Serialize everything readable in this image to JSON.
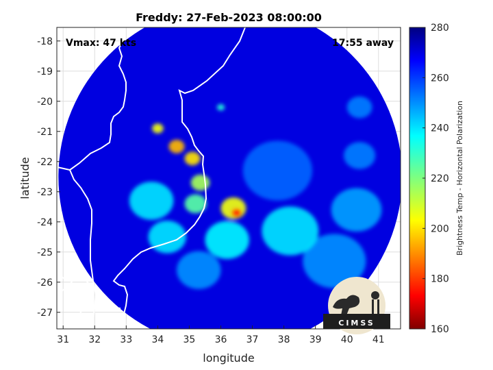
{
  "figure": {
    "title": "Freddy: 27-Feb-2023 08:00:00",
    "vmax_label": "Vmax: 47 kts",
    "time_away_label": "17:55 away",
    "logo_text": "CIMSS"
  },
  "map": {
    "xlabel": "longitude",
    "ylabel": "latitude",
    "xlim": [
      30.8,
      41.7
    ],
    "ylim": [
      -27.55,
      -17.55
    ],
    "xticks": [
      "31",
      "32",
      "33",
      "34",
      "35",
      "36",
      "37",
      "38",
      "39",
      "40",
      "41"
    ],
    "xtick_values": [
      31,
      32,
      33,
      34,
      35,
      36,
      37,
      38,
      39,
      40,
      41
    ],
    "yticks": [
      "-18",
      "-19",
      "-20",
      "-21",
      "-22",
      "-23",
      "-24",
      "-25",
      "-26",
      "-27"
    ],
    "ytick_values": [
      -18,
      -19,
      -20,
      -21,
      -22,
      -23,
      -24,
      -25,
      -26,
      -27
    ],
    "swath_center": [
      36.3,
      -22.5
    ],
    "swath_radius_deg": 5.45,
    "background_tb": 270,
    "tb_features": [
      {
        "lon": 36.5,
        "lat": -23.7,
        "tb": 178,
        "spread": 0.16
      },
      {
        "lon": 36.4,
        "lat": -23.55,
        "tb": 205,
        "spread": 0.4
      },
      {
        "lon": 34.6,
        "lat": -21.5,
        "tb": 195,
        "spread": 0.25
      },
      {
        "lon": 35.1,
        "lat": -21.9,
        "tb": 200,
        "spread": 0.25
      },
      {
        "lon": 34.0,
        "lat": -20.9,
        "tb": 205,
        "spread": 0.18
      },
      {
        "lon": 35.35,
        "lat": -22.7,
        "tb": 215,
        "spread": 0.3
      },
      {
        "lon": 35.2,
        "lat": -23.4,
        "tb": 225,
        "spread": 0.35
      },
      {
        "lon": 33.8,
        "lat": -23.3,
        "tb": 240,
        "spread": 0.7
      },
      {
        "lon": 34.3,
        "lat": -24.5,
        "tb": 240,
        "spread": 0.6
      },
      {
        "lon": 36.2,
        "lat": -24.6,
        "tb": 238,
        "spread": 0.7
      },
      {
        "lon": 38.2,
        "lat": -24.3,
        "tb": 240,
        "spread": 0.9
      },
      {
        "lon": 40.3,
        "lat": -23.6,
        "tb": 248,
        "spread": 0.8
      },
      {
        "lon": 39.6,
        "lat": -25.3,
        "tb": 250,
        "spread": 1.0
      },
      {
        "lon": 35.3,
        "lat": -25.6,
        "tb": 250,
        "spread": 0.7
      },
      {
        "lon": 40.4,
        "lat": -21.8,
        "tb": 252,
        "spread": 0.5
      },
      {
        "lon": 40.4,
        "lat": -20.2,
        "tb": 252,
        "spread": 0.4
      },
      {
        "lon": 36.0,
        "lat": -20.2,
        "tb": 232,
        "spread": 0.12
      },
      {
        "lon": 37.8,
        "lat": -22.3,
        "tb": 255,
        "spread": 1.1
      }
    ]
  },
  "colorbar": {
    "label": "Brightness Temp - Horizontal Polarization",
    "min": 160,
    "max": 280,
    "ticks": [
      "160",
      "180",
      "200",
      "220",
      "240",
      "260",
      "280"
    ],
    "tick_values": [
      160,
      180,
      200,
      220,
      240,
      260,
      280
    ],
    "colormap": "jet"
  }
}
